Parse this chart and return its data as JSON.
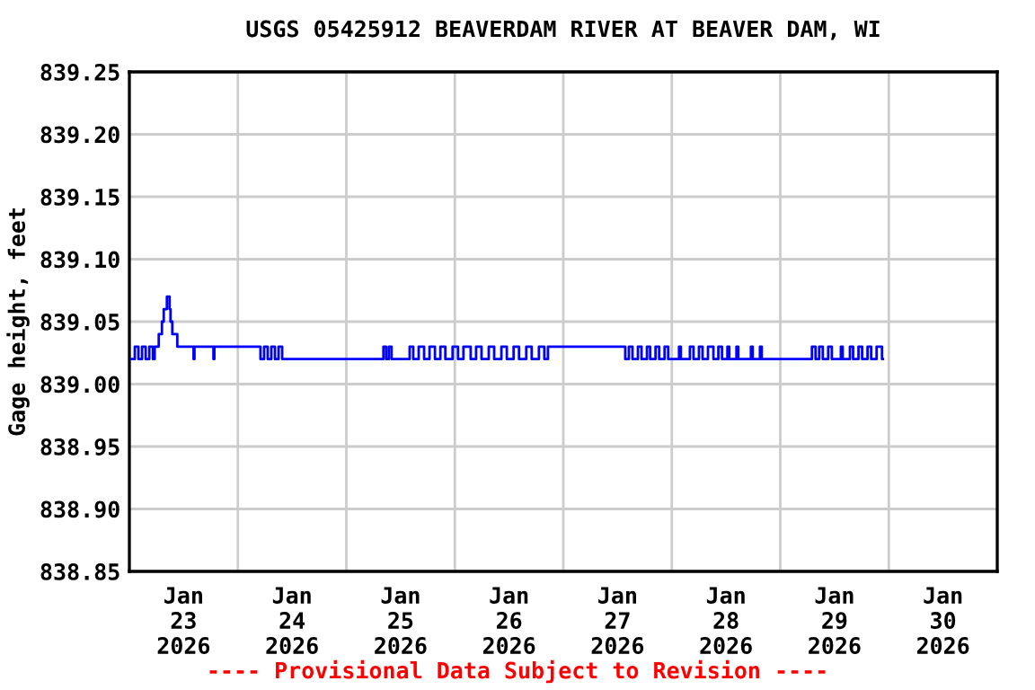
{
  "chart_data": {
    "type": "step",
    "title": "USGS 05425912 BEAVERDAM RIVER AT BEAVER DAM, WI",
    "ylabel": "Gage height, feet",
    "annotations": [
      "---- Provisional Data Subject to Revision ----"
    ],
    "x": [
      "2026-01-23T00:24",
      "2026-01-23T01:12",
      "2026-01-23T02:00",
      "2026-01-23T02:48",
      "2026-01-23T03:36",
      "2026-01-23T04:24",
      "2026-01-23T05:12",
      "2026-01-23T05:36",
      "2026-01-23T06:30",
      "2026-01-23T07:12",
      "2026-01-23T07:36",
      "2026-01-23T08:18",
      "2026-01-23T08:54",
      "2026-01-23T09:06",
      "2026-01-23T09:30",
      "2026-01-23T10:36",
      "2026-01-23T14:12",
      "2026-01-23T14:24",
      "2026-01-23T18:36",
      "2026-01-23T18:48",
      "2026-01-24T05:00",
      "2026-01-24T05:48",
      "2026-01-24T06:36",
      "2026-01-24T07:24",
      "2026-01-24T08:12",
      "2026-01-24T09:00",
      "2026-01-24T09:48",
      "2026-01-25T08:12",
      "2026-01-25T08:48",
      "2026-01-25T09:24",
      "2026-01-25T10:00",
      "2026-01-25T14:00",
      "2026-01-25T14:48",
      "2026-01-25T16:00",
      "2026-01-25T17:12",
      "2026-01-25T18:24",
      "2026-01-25T19:36",
      "2026-01-25T20:48",
      "2026-01-25T21:54",
      "2026-01-25T23:30",
      "2026-01-26T00:42",
      "2026-01-26T01:54",
      "2026-01-26T03:30",
      "2026-01-26T04:42",
      "2026-01-26T05:54",
      "2026-01-26T07:30",
      "2026-01-26T08:42",
      "2026-01-26T10:18",
      "2026-01-26T11:30",
      "2026-01-26T13:00",
      "2026-01-26T14:12",
      "2026-01-26T15:48",
      "2026-01-26T17:00",
      "2026-01-26T18:36",
      "2026-01-26T19:48",
      "2026-01-26T20:36",
      "2026-01-27T13:42",
      "2026-01-27T14:30",
      "2026-01-27T15:18",
      "2026-01-27T16:30",
      "2026-01-27T17:18",
      "2026-01-27T18:30",
      "2026-01-27T19:12",
      "2026-01-27T20:24",
      "2026-01-27T21:12",
      "2026-01-27T22:24",
      "2026-01-27T23:12",
      "2026-01-28T01:36",
      "2026-01-28T02:00",
      "2026-01-28T04:00",
      "2026-01-28T04:48",
      "2026-01-28T06:00",
      "2026-01-28T06:48",
      "2026-01-28T08:00",
      "2026-01-28T09:12",
      "2026-01-28T10:18",
      "2026-01-28T11:06",
      "2026-01-28T12:18",
      "2026-01-28T12:42",
      "2026-01-28T14:18",
      "2026-01-28T14:42",
      "2026-01-28T17:30",
      "2026-01-28T17:54",
      "2026-01-28T19:30",
      "2026-01-28T19:54",
      "2026-01-29T07:00",
      "2026-01-29T07:48",
      "2026-01-29T08:36",
      "2026-01-29T09:24",
      "2026-01-29T10:36",
      "2026-01-29T11:24",
      "2026-01-29T13:24",
      "2026-01-29T13:48",
      "2026-01-29T15:24",
      "2026-01-29T16:06",
      "2026-01-29T17:18",
      "2026-01-29T18:06",
      "2026-01-29T19:18",
      "2026-01-29T20:06",
      "2026-01-29T21:18",
      "2026-01-29T22:30",
      "2026-01-29T22:42"
    ],
    "series": [
      {
        "color": "#0000ff",
        "values": [
          839.02,
          839.03,
          839.02,
          839.03,
          839.02,
          839.03,
          839.02,
          839.03,
          839.04,
          839.05,
          839.06,
          839.07,
          839.06,
          839.05,
          839.04,
          839.03,
          839.02,
          839.03,
          839.02,
          839.03,
          839.02,
          839.03,
          839.02,
          839.03,
          839.02,
          839.03,
          839.02,
          839.03,
          839.02,
          839.03,
          839.02,
          839.03,
          839.02,
          839.03,
          839.02,
          839.03,
          839.02,
          839.03,
          839.02,
          839.03,
          839.02,
          839.03,
          839.02,
          839.03,
          839.02,
          839.03,
          839.02,
          839.03,
          839.02,
          839.03,
          839.02,
          839.03,
          839.02,
          839.03,
          839.02,
          839.03,
          839.02,
          839.03,
          839.02,
          839.03,
          839.02,
          839.03,
          839.02,
          839.03,
          839.02,
          839.03,
          839.02,
          839.03,
          839.02,
          839.03,
          839.02,
          839.03,
          839.02,
          839.03,
          839.02,
          839.03,
          839.02,
          839.03,
          839.02,
          839.03,
          839.02,
          839.03,
          839.02,
          839.03,
          839.02,
          839.03,
          839.02,
          839.03,
          839.02,
          839.03,
          839.02,
          839.03,
          839.02,
          839.03,
          839.02,
          839.03,
          839.02,
          839.03,
          839.02,
          839.03,
          839.02,
          839.02
        ]
      }
    ],
    "xlim": [
      "2026-01-23",
      "2026-01-31"
    ],
    "xticks": [
      {
        "value": "2026-01-23T12:00",
        "label": "Jan\n23\n2026"
      },
      {
        "value": "2026-01-24",
        "label": null
      },
      {
        "value": "2026-01-24T12:00",
        "label": "Jan\n24\n2026"
      },
      {
        "value": "2026-01-25",
        "label": null
      },
      {
        "value": "2026-01-25T12:00",
        "label": "Jan\n25\n2026"
      },
      {
        "value": "2026-01-26",
        "label": null
      },
      {
        "value": "2026-01-26T12:00",
        "label": "Jan\n26\n2026"
      },
      {
        "value": "2026-01-27",
        "label": null
      },
      {
        "value": "2026-01-27T12:00",
        "label": "Jan\n27\n2026"
      },
      {
        "value": "2026-01-28",
        "label": null
      },
      {
        "value": "2026-01-28T12:00",
        "label": "Jan\n28\n2026"
      },
      {
        "value": "2026-01-29",
        "label": null
      },
      {
        "value": "2026-01-29T12:00",
        "label": "Jan\n29\n2026"
      },
      {
        "value": "2026-01-30",
        "label": null
      },
      {
        "value": "2026-01-30T12:00",
        "label": "Jan\n30\n2026"
      }
    ],
    "ylim": [
      838.85,
      839.25
    ],
    "yticks": [
      {
        "value": 838.85,
        "label": "838.85"
      },
      {
        "value": 838.9,
        "label": "838.90"
      },
      {
        "value": 838.95,
        "label": "838.95"
      },
      {
        "value": 839.0,
        "label": "839.00"
      },
      {
        "value": 839.05,
        "label": "839.05"
      },
      {
        "value": 839.1,
        "label": "839.10"
      },
      {
        "value": 839.15,
        "label": "839.15"
      },
      {
        "value": 839.2,
        "label": "839.20"
      },
      {
        "value": 839.25,
        "label": "839.25"
      }
    ],
    "grid": true,
    "legend": false
  }
}
